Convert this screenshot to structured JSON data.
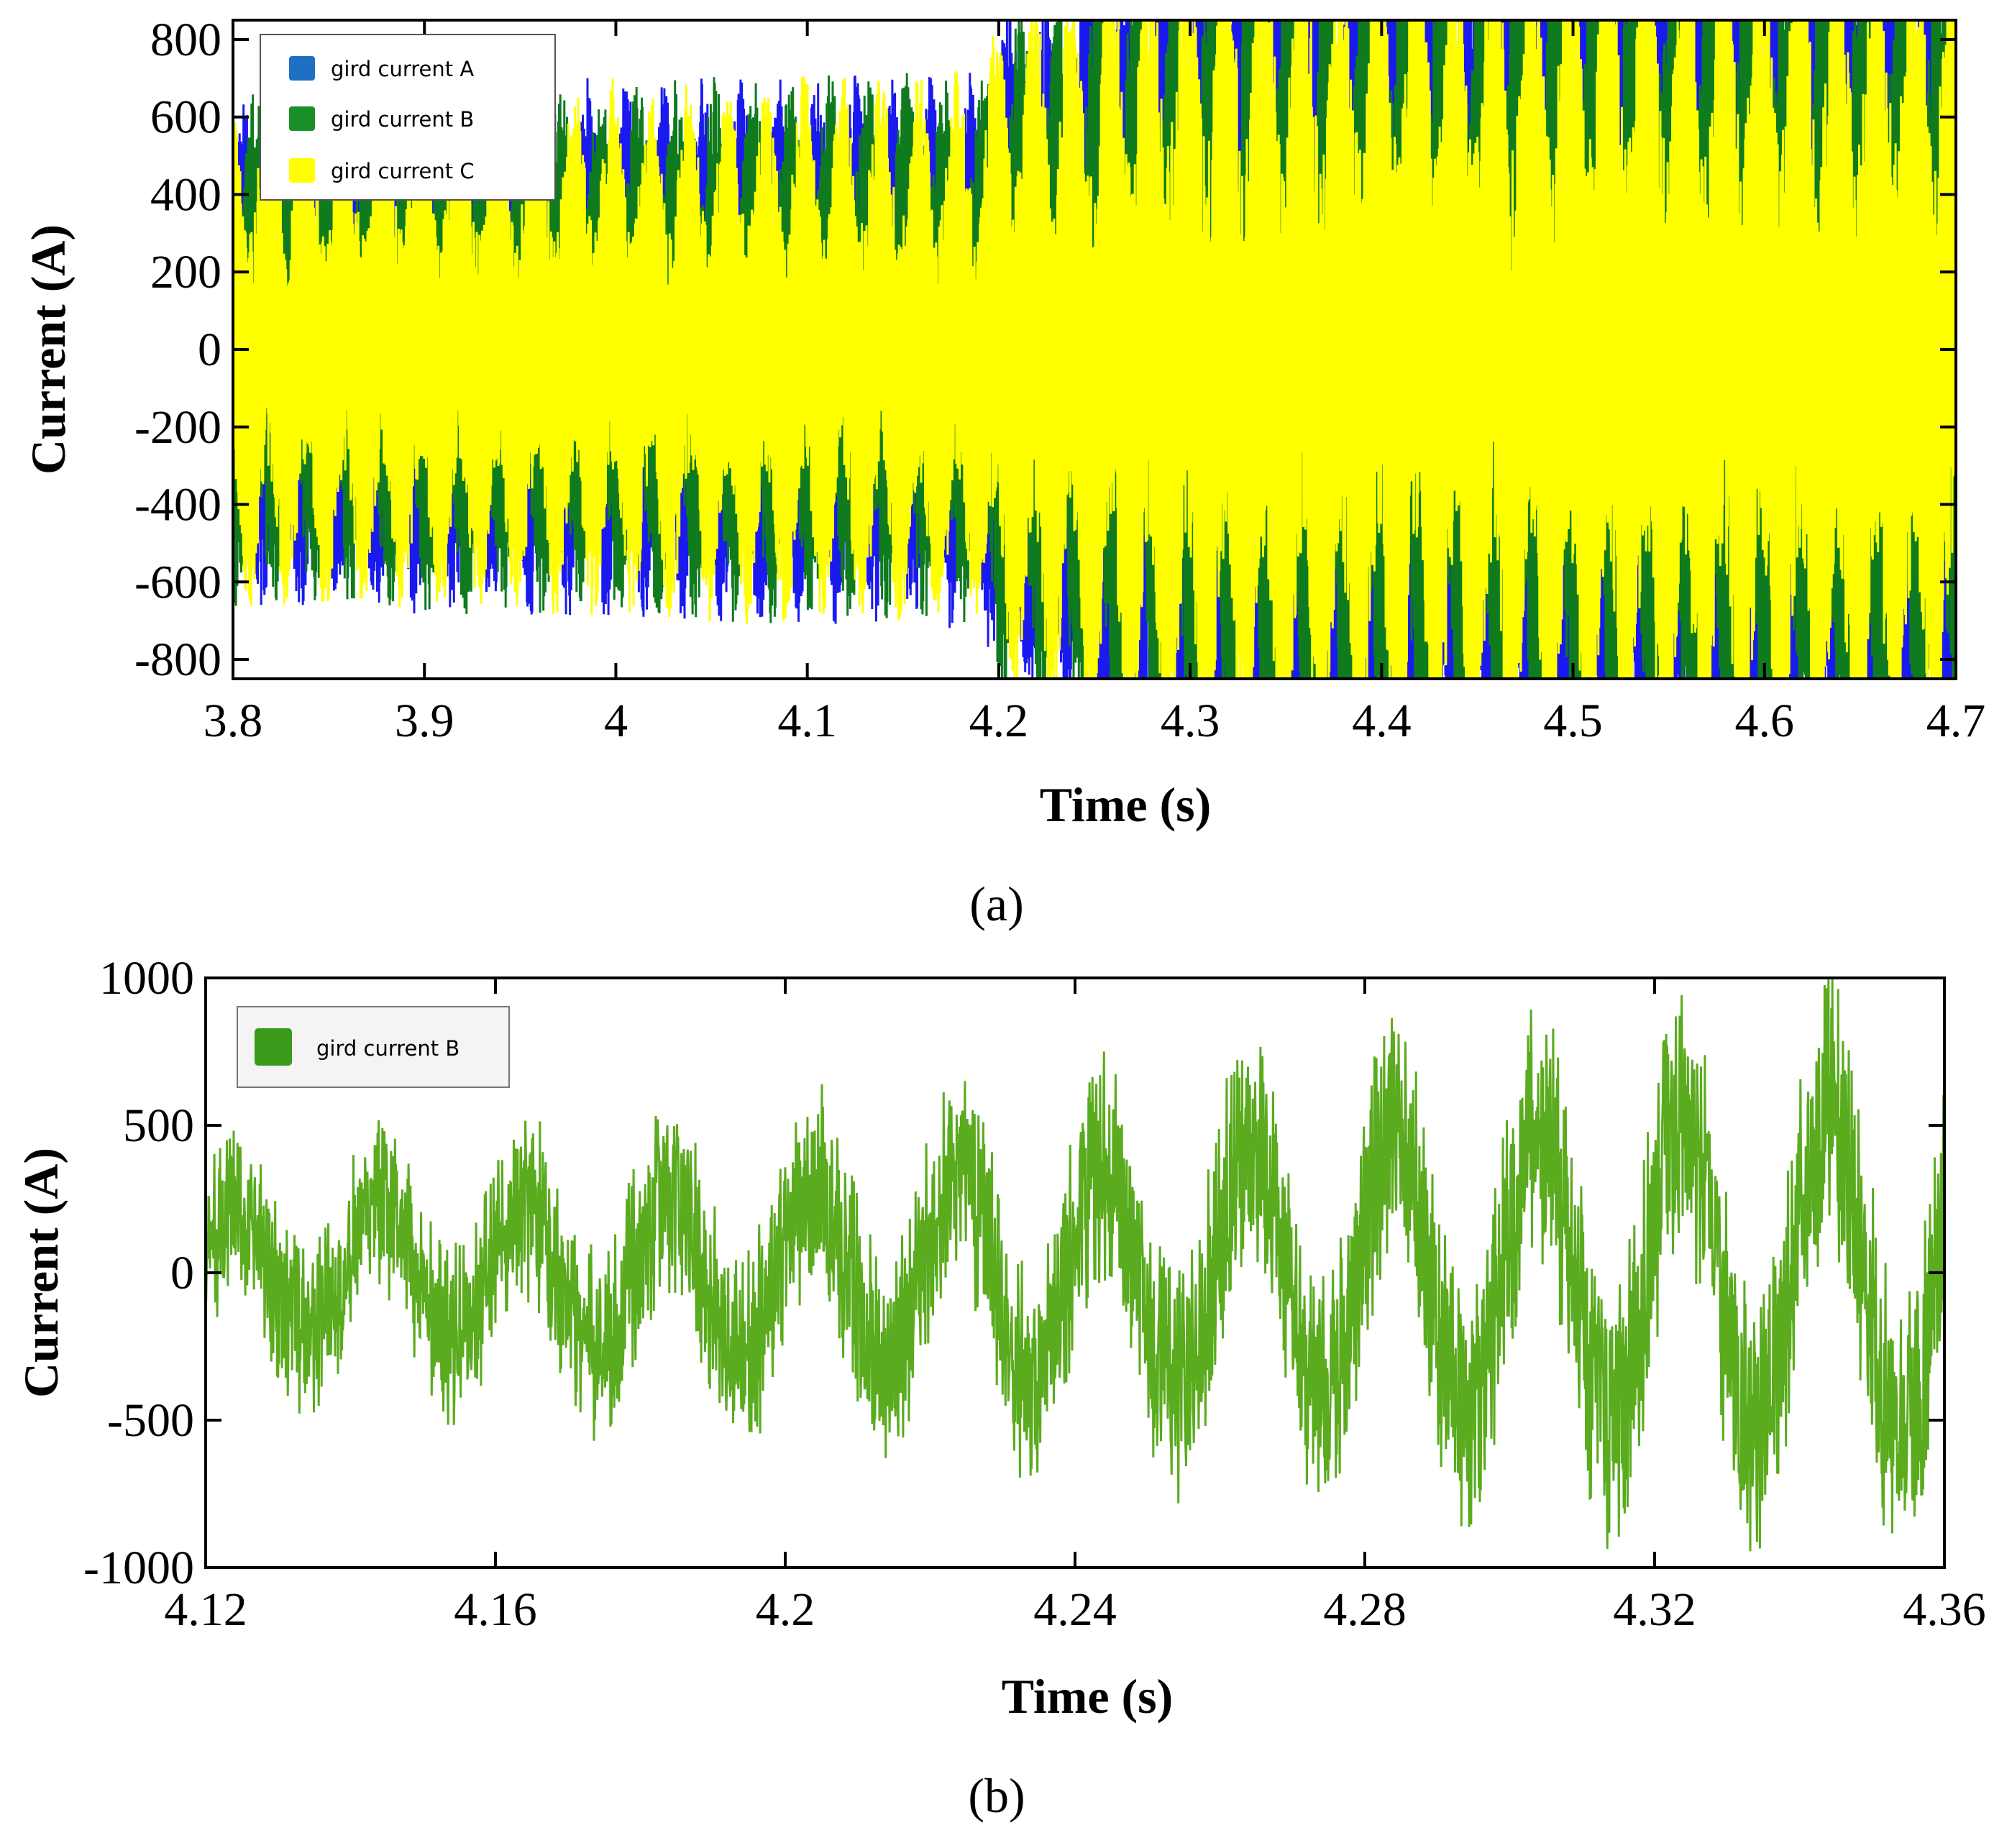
{
  "chart_data": [
    {
      "type": "line",
      "panel_label": "(a)",
      "title": "",
      "xlabel": "Time (s)",
      "ylabel": "Current (A)",
      "xlim": [
        3.8,
        4.7
      ],
      "ylim": [
        -850,
        850
      ],
      "xticks": [
        3.8,
        3.9,
        4.0,
        4.1,
        4.2,
        4.3,
        4.4,
        4.5,
        4.6,
        4.7
      ],
      "xtick_labels": [
        "3.8",
        "3.9",
        "4",
        "4.1",
        "4.2",
        "4.3",
        "4.4",
        "4.5",
        "4.6",
        "4.7"
      ],
      "yticks": [
        800,
        600,
        400,
        200,
        0,
        -200,
        -400,
        -600,
        -800
      ],
      "ytick_labels": [
        "800",
        "600",
        "400",
        "200",
        "0",
        "-200",
        "-400",
        "-600",
        "-800"
      ],
      "legend_position": "top-left",
      "fundamental_hz": 50,
      "series": [
        {
          "name": "gird current A",
          "color": "#1a1aee",
          "legend_color": "#1f6fc4",
          "envelope": {
            "t": [
              3.8,
              4.19,
              4.2,
              4.3,
              4.7
            ],
            "amplitude": [
              520,
              560,
              700,
              900,
              900
            ]
          },
          "phase_deg": 0
        },
        {
          "name": "gird current B",
          "color": "#0f7a1e",
          "legend_color": "#1a8f2a",
          "envelope": {
            "t": [
              3.8,
              4.19,
              4.2,
              4.3,
              4.7
            ],
            "amplitude": [
              520,
              560,
              700,
              900,
              900
            ]
          },
          "phase_deg": -120
        },
        {
          "name": "gird current C",
          "color": "#ffff00",
          "legend_color": "#ffff00",
          "envelope": {
            "t": [
              3.8,
              4.19,
              4.2,
              4.3,
              4.7
            ],
            "amplitude": [
              520,
              560,
              700,
              900,
              900
            ]
          },
          "phase_deg": 120
        }
      ]
    },
    {
      "type": "line",
      "panel_label": "(b)",
      "title": "",
      "xlabel": "Time (s)",
      "ylabel": "Current (A)",
      "xlim": [
        4.12,
        4.36
      ],
      "ylim": [
        -1000,
        1000
      ],
      "xticks": [
        4.12,
        4.16,
        4.2,
        4.24,
        4.28,
        4.32,
        4.36
      ],
      "xtick_labels": [
        "4.12",
        "4.16",
        "4.2",
        "4.24",
        "4.28",
        "4.32",
        "4.36"
      ],
      "yticks": [
        1000,
        500,
        0,
        -500,
        -1000
      ],
      "ytick_labels": [
        "1000",
        "500",
        "0",
        "-500",
        "-1000"
      ],
      "legend_position": "top-left",
      "fundamental_hz": 50,
      "series": [
        {
          "name": "gird current B",
          "color": "#5aab1e",
          "legend_color": "#3a9a1a",
          "envelope": {
            "t": [
              4.12,
              4.2,
              4.28,
              4.36
            ],
            "amplitude": [
              180,
              280,
              450,
              550
            ]
          },
          "noise_amplitude": 420,
          "phase_deg": 0
        }
      ]
    }
  ]
}
